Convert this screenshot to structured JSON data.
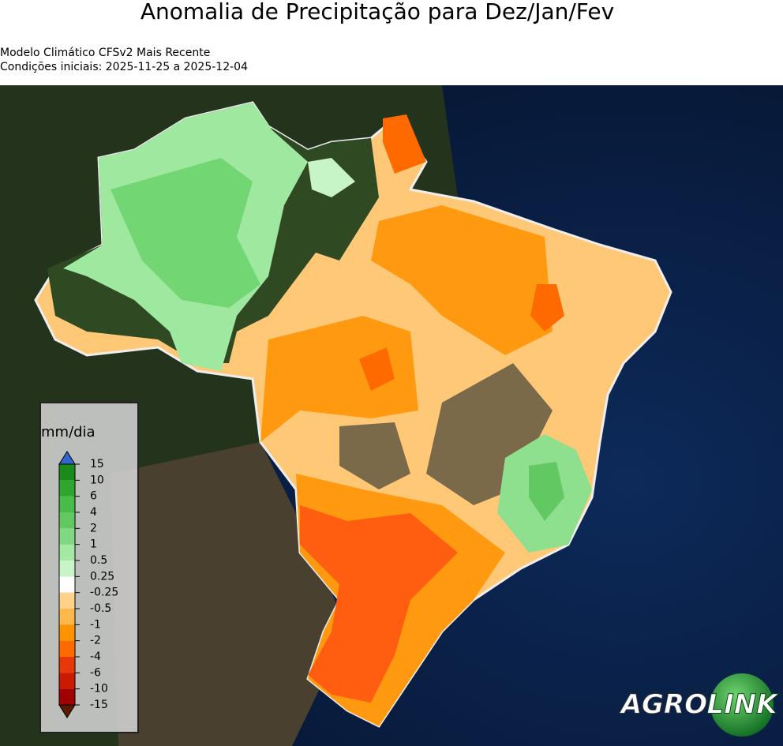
{
  "title": "Anomalia de Precipitação para Dez/Jan/Fev",
  "subtitle": [
    "Modelo Climático CFSv2 Mais Recente",
    "Condições iniciais: 2025-11-25 a 2025-12-04"
  ],
  "legend": {
    "label": "mm/dia",
    "ticks": [
      15,
      10,
      6,
      4,
      2,
      1,
      0.5,
      0.25,
      -0.25,
      -0.5,
      -1,
      -2,
      -4,
      -6,
      -10,
      -15
    ],
    "colors": [
      "#1a8a1a",
      "#2ea62e",
      "#48bb48",
      "#62c962",
      "#80d880",
      "#a3e8a3",
      "#c8f5c8",
      "#ffffff",
      "#ffd28c",
      "#ffb84a",
      "#ff9400",
      "#ff6a00",
      "#e8380a",
      "#cc1a00",
      "#a00000"
    ]
  },
  "logo": {
    "left": "AGRO",
    "right": "LINK"
  }
}
